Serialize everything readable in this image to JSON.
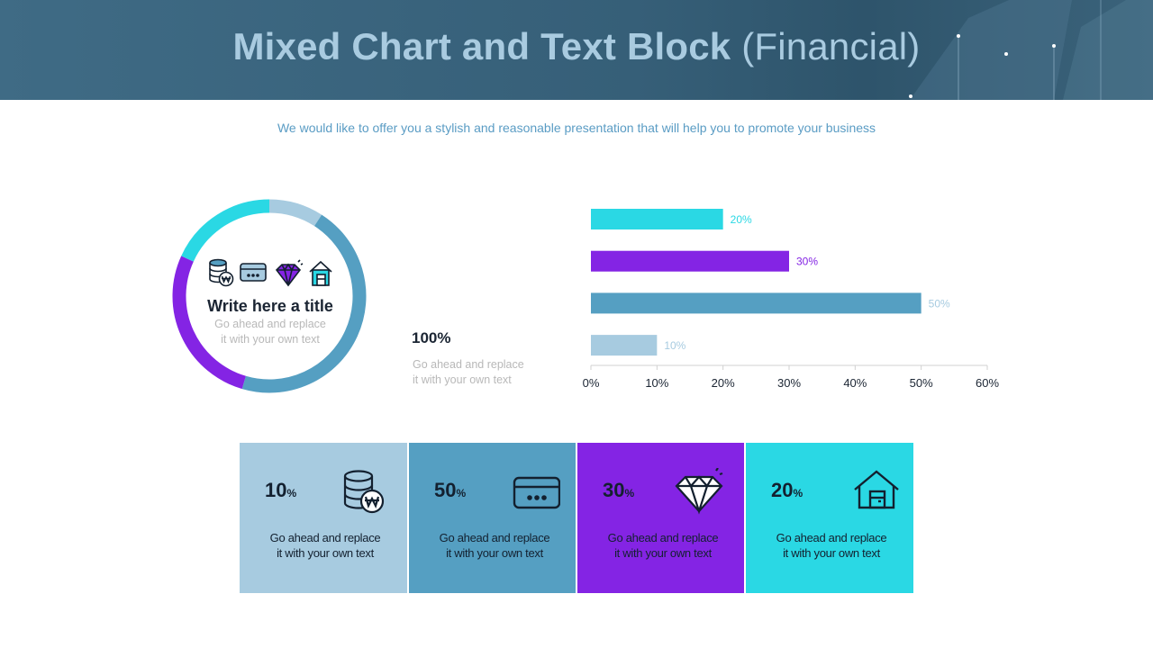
{
  "header": {
    "title_main": "Mixed Chart and Text Block",
    "title_paren": "(Financial)",
    "bg_color": "#3b647c",
    "title_color": "#a9cbe0"
  },
  "subtitle": "We would like to offer you a stylish and reasonable presentation that will help you to promote your business",
  "donut": {
    "title": "Write here a title",
    "text_line1": "Go ahead and replace",
    "text_line2": "it with your own text",
    "icons": [
      "coins-won-icon",
      "credit-card-icon",
      "diamond-icon",
      "house-icon"
    ]
  },
  "summary": {
    "value": "100%",
    "text_line1": "Go ahead and replace",
    "text_line2": "it with your own text"
  },
  "chart_data": [
    {
      "type": "pie",
      "variant": "donut",
      "categories": [
        "Light blue",
        "Blue",
        "Purple",
        "Cyan"
      ],
      "values": [
        10,
        50,
        30,
        20
      ],
      "colors": [
        "#a7cbe0",
        "#559fc2",
        "#8424e4",
        "#2ad8e4"
      ],
      "title": ""
    },
    {
      "type": "bar",
      "orientation": "horizontal",
      "categories": [
        "",
        "",
        "",
        ""
      ],
      "values": [
        20,
        30,
        50,
        10
      ],
      "labels": [
        "20%",
        "30%",
        "50%",
        "10%"
      ],
      "colors": [
        "#2ad8e4",
        "#8424e4",
        "#559fc2",
        "#a7cbe0"
      ],
      "label_colors": [
        "#2ad8e4",
        "#8424e4",
        "#a7cbe0",
        "#a7cbe0"
      ],
      "xlim": [
        0,
        60
      ],
      "xticks": [
        "0%",
        "10%",
        "20%",
        "30%",
        "40%",
        "50%",
        "60%"
      ],
      "grid": false,
      "title": "",
      "xlabel": "",
      "ylabel": ""
    }
  ],
  "cards": [
    {
      "value": "10",
      "unit": "%",
      "text_line1": "Go ahead and replace",
      "text_line2": "it with your own text",
      "color": "#a7cbe0",
      "icon": "coins-won-icon"
    },
    {
      "value": "50",
      "unit": "%",
      "text_line1": "Go ahead and replace",
      "text_line2": "it with your own text",
      "color": "#559fc2",
      "icon": "credit-card-icon"
    },
    {
      "value": "30",
      "unit": "%",
      "text_line1": "Go ahead and replace",
      "text_line2": "it with your own text",
      "color": "#8424e4",
      "icon": "diamond-icon"
    },
    {
      "value": "20",
      "unit": "%",
      "text_line1": "Go ahead and replace",
      "text_line2": "it with your own text",
      "color": "#2ad8e4",
      "icon": "house-icon"
    }
  ]
}
